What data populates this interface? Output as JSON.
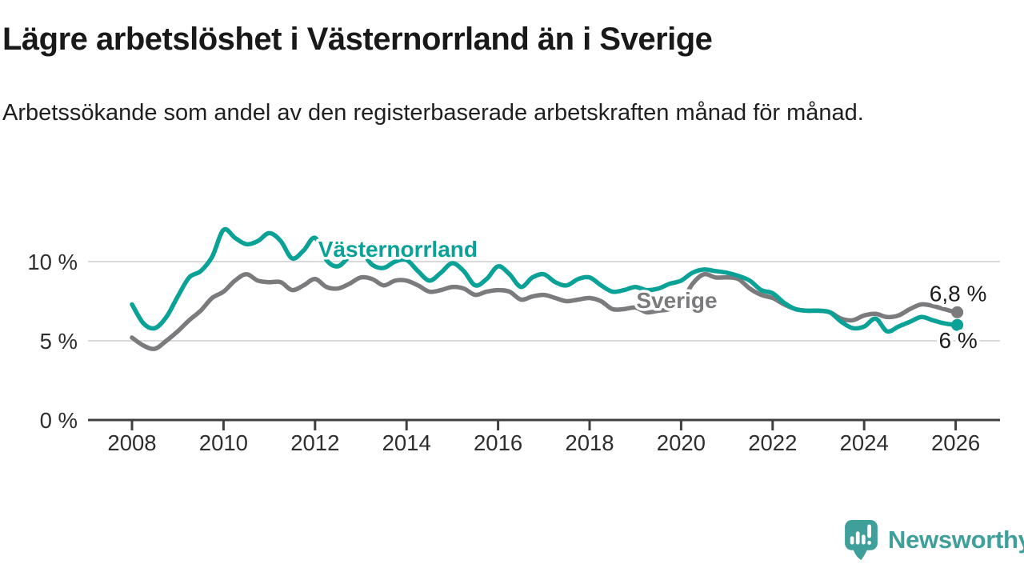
{
  "header": {
    "title": "Lägre arbetslöshet i Västernorrland än i Sverige",
    "subtitle": "Arbetssökande som andel av den registerbaserade arbetskraften månad för månad."
  },
  "branding": {
    "name": "Newsworthy",
    "color": "#3fa09b"
  },
  "chart_data": {
    "type": "line",
    "title": "Lägre arbetslöshet i Västernorrland än i Sverige",
    "subtitle": "Arbetssökande som andel av den registerbaserade arbetskraften månad för månad.",
    "unit": "%",
    "grid": "horizontal",
    "legend": "inline-labels",
    "x_axis": {
      "ticks": [
        2008,
        2010,
        2012,
        2014,
        2016,
        2018,
        2020,
        2022,
        2024,
        2026
      ],
      "range": [
        2007.0,
        2027.0
      ]
    },
    "y_axis": {
      "ticks": [
        0,
        5,
        10
      ],
      "tick_suffix": " %",
      "range": [
        0,
        12.8
      ]
    },
    "x_start": 2008.0,
    "x_step_years": 0.25,
    "series": [
      {
        "name": "Sverige",
        "color": "#7b7b7e",
        "end_label": "6,8 %",
        "end_value": 6.8,
        "label_pos": {
          "x": 2019.02,
          "y": 7.07
        },
        "values": [
          5.2,
          4.7,
          4.5,
          5.0,
          5.6,
          6.3,
          6.9,
          7.7,
          8.1,
          8.8,
          9.2,
          8.8,
          8.7,
          8.7,
          8.2,
          8.5,
          8.9,
          8.4,
          8.3,
          8.6,
          9.0,
          8.9,
          8.5,
          8.8,
          8.8,
          8.5,
          8.1,
          8.2,
          8.4,
          8.3,
          7.9,
          8.1,
          8.2,
          8.1,
          7.6,
          7.8,
          7.9,
          7.7,
          7.5,
          7.6,
          7.7,
          7.5,
          7.0,
          7.0,
          7.1,
          6.8,
          6.9,
          7.0,
          7.4,
          8.6,
          9.2,
          9.0,
          9.0,
          8.9,
          8.3,
          7.9,
          7.7,
          7.3,
          7.0,
          6.9,
          6.9,
          6.8,
          6.4,
          6.3,
          6.6,
          6.7,
          6.5,
          6.6,
          7.0,
          7.3,
          7.2,
          7.0,
          6.8
        ]
      },
      {
        "name": "Västernorrland",
        "color": "#0aa296",
        "end_label": "6 %",
        "end_value": 6.0,
        "label_pos": {
          "x": 2012.07,
          "y": 10.3
        },
        "values": [
          7.3,
          6.1,
          5.8,
          6.5,
          7.8,
          9.0,
          9.4,
          10.3,
          12.0,
          11.5,
          11.1,
          11.3,
          11.8,
          11.3,
          10.2,
          10.7,
          11.5,
          10.1,
          9.7,
          10.3,
          10.6,
          9.8,
          9.6,
          10.0,
          10.1,
          9.4,
          8.8,
          9.3,
          9.9,
          9.4,
          8.5,
          8.9,
          9.7,
          9.2,
          8.4,
          9.0,
          9.2,
          8.7,
          8.5,
          8.9,
          9.0,
          8.5,
          8.1,
          8.2,
          8.4,
          8.2,
          8.3,
          8.6,
          8.8,
          9.3,
          9.5,
          9.4,
          9.3,
          9.1,
          8.8,
          8.2,
          8.0,
          7.4,
          7.0,
          6.9,
          6.9,
          6.8,
          6.2,
          5.8,
          5.9,
          6.4,
          5.6,
          5.9,
          6.2,
          6.5,
          6.3,
          6.1,
          6.0
        ]
      }
    ]
  }
}
